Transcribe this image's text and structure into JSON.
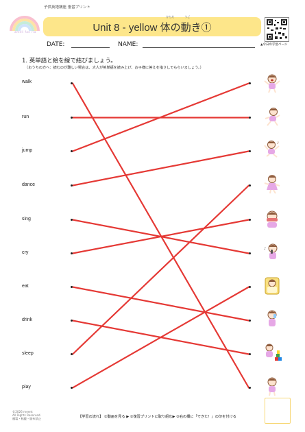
{
  "header": {
    "subtitle": "子供英語講座 復習プリント",
    "title": "Unit 8 - yellow 体の動き①",
    "ruby_karada": "からだ",
    "ruby_ugo": "うご",
    "qr_caption": "▲今日の学習ページ"
  },
  "logo": {
    "text": "ameli fan ria"
  },
  "form": {
    "date_label": "DATE:",
    "name_label": "NAME:"
  },
  "question": {
    "title": "1. 英単語と絵を線で結びましょう。",
    "note": "（おうちの方へ：読むのが難しい場合は、大人が英単語を読み上げ、お子様に答えを指さしてもらいましょう。）"
  },
  "words": [
    "walk",
    "run",
    "jump",
    "dance",
    "sing",
    "cry",
    "eat",
    "drink",
    "sleep",
    "play"
  ],
  "pictures": [
    "crying-child-icon",
    "running-child-icon",
    "jumping-child-icon",
    "dancing-child-icon",
    "eating-child-icon",
    "singing-child-icon",
    "sleeping-child-icon",
    "drinking-child-icon",
    "playing-blocks-child-icon",
    "walking-child-icon"
  ],
  "matches": [
    [
      0,
      9
    ],
    [
      1,
      1
    ],
    [
      2,
      0
    ],
    [
      3,
      2
    ],
    [
      4,
      5
    ],
    [
      5,
      4
    ],
    [
      6,
      7
    ],
    [
      7,
      8
    ],
    [
      8,
      3
    ],
    [
      9,
      6
    ]
  ],
  "colors": {
    "line": "#e53935",
    "title_bar": "#fde68a",
    "stamp_border": "#f7d774"
  },
  "footer": {
    "copyright_1": "©2026 meent",
    "copyright_2": "All Rights Reserved.",
    "copyright_3": "複製・転載・販布禁止",
    "flow": "【学習の流れ】 ①動画を見る ▶ ②復習プリントに取り組む▶ ③右の欄に「できた！」の印を付ける"
  }
}
